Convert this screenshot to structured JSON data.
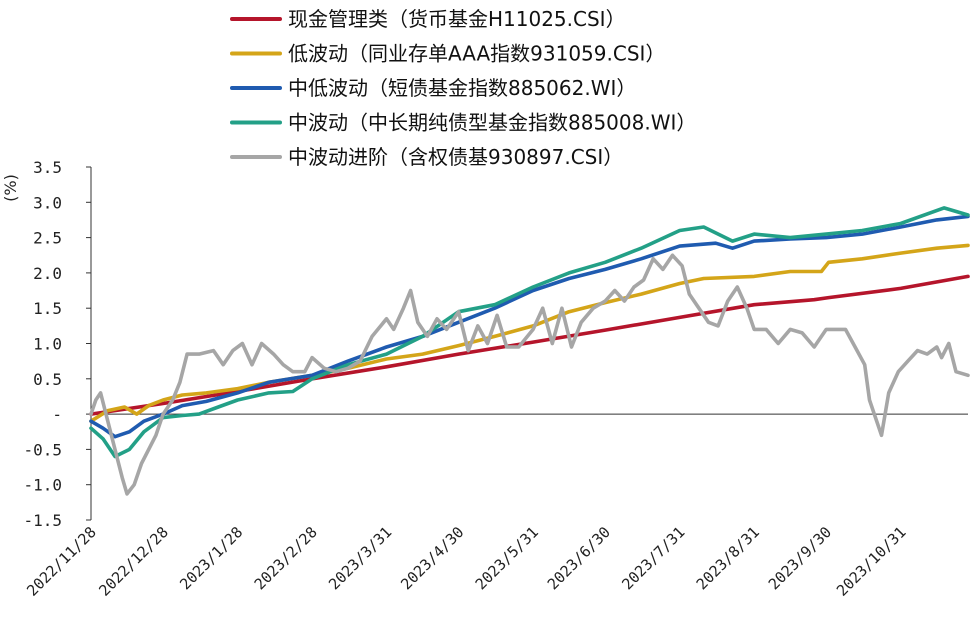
{
  "chart_data": {
    "type": "line",
    "ylabel": "(%)",
    "ylim": [
      -1.5,
      3.5
    ],
    "yticks": [
      "3.5",
      "3.0",
      "2.5",
      "2.0",
      "1.5",
      "1.0",
      "0.5",
      "-",
      "-0.5",
      "-1.0",
      "-1.5"
    ],
    "ytick_values": [
      3.5,
      3.0,
      2.5,
      2.0,
      1.5,
      1.0,
      0.5,
      0,
      -0.5,
      -1.0,
      -1.5
    ],
    "x_start": "2022-11-28",
    "x_end": "2023-11-28",
    "xticks": [
      "2022/11/28",
      "2022/12/28",
      "2023/1/28",
      "2023/2/28",
      "2023/3/31",
      "2023/4/30",
      "2023/5/31",
      "2023/6/30",
      "2023/7/31",
      "2023/8/31",
      "2023/9/30",
      "2023/10/31"
    ],
    "legend_position": "top",
    "grid": false,
    "series": [
      {
        "name": "现金管理类（货币基金H11025.CSI）",
        "color": "#B5152B",
        "points": [
          [
            "2022-11-28",
            0.0
          ],
          [
            "2022-12-28",
            0.15
          ],
          [
            "2023-01-28",
            0.32
          ],
          [
            "2023-02-28",
            0.5
          ],
          [
            "2023-03-31",
            0.67
          ],
          [
            "2023-04-30",
            0.85
          ],
          [
            "2023-05-31",
            1.02
          ],
          [
            "2023-06-30",
            1.19
          ],
          [
            "2023-07-31",
            1.37
          ],
          [
            "2023-08-31",
            1.55
          ],
          [
            "2023-09-25",
            1.62
          ],
          [
            "2023-10-01",
            1.65
          ],
          [
            "2023-10-31",
            1.78
          ],
          [
            "2023-11-28",
            1.95
          ]
        ]
      },
      {
        "name": "低波动（同业存单AAA指数931059.CSI）",
        "color": "#D4A519",
        "points": [
          [
            "2022-11-28",
            -0.1
          ],
          [
            "2022-12-05",
            0.05
          ],
          [
            "2022-12-12",
            0.1
          ],
          [
            "2022-12-17",
            0.0
          ],
          [
            "2022-12-22",
            0.12
          ],
          [
            "2022-12-28",
            0.2
          ],
          [
            "2023-01-05",
            0.27
          ],
          [
            "2023-01-15",
            0.3
          ],
          [
            "2023-01-28",
            0.36
          ],
          [
            "2023-02-10",
            0.45
          ],
          [
            "2023-02-28",
            0.55
          ],
          [
            "2023-03-15",
            0.65
          ],
          [
            "2023-03-31",
            0.78
          ],
          [
            "2023-04-15",
            0.85
          ],
          [
            "2023-04-30",
            0.97
          ],
          [
            "2023-05-15",
            1.1
          ],
          [
            "2023-05-31",
            1.25
          ],
          [
            "2023-06-15",
            1.45
          ],
          [
            "2023-06-30",
            1.58
          ],
          [
            "2023-07-15",
            1.7
          ],
          [
            "2023-07-31",
            1.85
          ],
          [
            "2023-08-10",
            1.92
          ],
          [
            "2023-08-31",
            1.95
          ],
          [
            "2023-09-15",
            2.02
          ],
          [
            "2023-09-28",
            2.02
          ],
          [
            "2023-10-01",
            2.15
          ],
          [
            "2023-10-15",
            2.2
          ],
          [
            "2023-10-31",
            2.28
          ],
          [
            "2023-11-15",
            2.35
          ],
          [
            "2023-11-28",
            2.39
          ]
        ]
      },
      {
        "name": "中低波动（短债基金指数885062.WI）",
        "color": "#1F5BB0",
        "points": [
          [
            "2022-11-28",
            -0.1
          ],
          [
            "2022-12-03",
            -0.2
          ],
          [
            "2022-12-08",
            -0.32
          ],
          [
            "2022-12-14",
            -0.25
          ],
          [
            "2022-12-20",
            -0.1
          ],
          [
            "2022-12-28",
            0.0
          ],
          [
            "2023-01-05",
            0.12
          ],
          [
            "2023-01-15",
            0.18
          ],
          [
            "2023-01-28",
            0.3
          ],
          [
            "2023-02-10",
            0.45
          ],
          [
            "2023-02-28",
            0.55
          ],
          [
            "2023-03-15",
            0.75
          ],
          [
            "2023-03-31",
            0.95
          ],
          [
            "2023-04-15",
            1.1
          ],
          [
            "2023-04-30",
            1.3
          ],
          [
            "2023-05-15",
            1.5
          ],
          [
            "2023-05-31",
            1.75
          ],
          [
            "2023-06-15",
            1.92
          ],
          [
            "2023-06-30",
            2.05
          ],
          [
            "2023-07-15",
            2.2
          ],
          [
            "2023-07-31",
            2.38
          ],
          [
            "2023-08-15",
            2.42
          ],
          [
            "2023-08-22",
            2.35
          ],
          [
            "2023-08-31",
            2.45
          ],
          [
            "2023-09-15",
            2.48
          ],
          [
            "2023-09-30",
            2.5
          ],
          [
            "2023-10-15",
            2.55
          ],
          [
            "2023-10-31",
            2.65
          ],
          [
            "2023-11-15",
            2.75
          ],
          [
            "2023-11-28",
            2.8
          ]
        ]
      },
      {
        "name": "中波动（中长期纯债型基金指数885008.WI）",
        "color": "#23A087",
        "points": [
          [
            "2022-11-28",
            -0.2
          ],
          [
            "2022-12-03",
            -0.35
          ],
          [
            "2022-12-08",
            -0.6
          ],
          [
            "2022-12-14",
            -0.5
          ],
          [
            "2022-12-20",
            -0.25
          ],
          [
            "2022-12-28",
            -0.05
          ],
          [
            "2023-01-05",
            -0.02
          ],
          [
            "2023-01-12",
            0.0
          ],
          [
            "2023-01-20",
            0.1
          ],
          [
            "2023-01-28",
            0.2
          ],
          [
            "2023-02-10",
            0.3
          ],
          [
            "2023-02-20",
            0.32
          ],
          [
            "2023-02-28",
            0.5
          ],
          [
            "2023-03-15",
            0.7
          ],
          [
            "2023-03-31",
            0.85
          ],
          [
            "2023-04-15",
            1.1
          ],
          [
            "2023-04-30",
            1.45
          ],
          [
            "2023-05-15",
            1.55
          ],
          [
            "2023-05-31",
            1.8
          ],
          [
            "2023-06-15",
            2.0
          ],
          [
            "2023-06-30",
            2.15
          ],
          [
            "2023-07-15",
            2.35
          ],
          [
            "2023-07-31",
            2.6
          ],
          [
            "2023-08-10",
            2.65
          ],
          [
            "2023-08-22",
            2.45
          ],
          [
            "2023-08-31",
            2.55
          ],
          [
            "2023-09-15",
            2.5
          ],
          [
            "2023-09-30",
            2.55
          ],
          [
            "2023-10-15",
            2.6
          ],
          [
            "2023-10-31",
            2.7
          ],
          [
            "2023-11-18",
            2.92
          ],
          [
            "2023-11-28",
            2.82
          ]
        ]
      },
      {
        "name": "中波动进阶（含权债基930897.CSI）",
        "color": "#A6A6A6",
        "points": [
          [
            "2022-11-28",
            0.0
          ],
          [
            "2022-11-30",
            0.2
          ],
          [
            "2022-12-02",
            0.3
          ],
          [
            "2022-12-05",
            -0.1
          ],
          [
            "2022-12-08",
            -0.5
          ],
          [
            "2022-12-11",
            -0.9
          ],
          [
            "2022-12-13",
            -1.13
          ],
          [
            "2022-12-16",
            -1.0
          ],
          [
            "2022-12-19",
            -0.7
          ],
          [
            "2022-12-22",
            -0.5
          ],
          [
            "2022-12-25",
            -0.3
          ],
          [
            "2022-12-28",
            0.0
          ],
          [
            "2023-01-01",
            0.2
          ],
          [
            "2023-01-04",
            0.45
          ],
          [
            "2023-01-07",
            0.85
          ],
          [
            "2023-01-12",
            0.85
          ],
          [
            "2023-01-18",
            0.9
          ],
          [
            "2023-01-22",
            0.7
          ],
          [
            "2023-01-26",
            0.9
          ],
          [
            "2023-01-30",
            1.0
          ],
          [
            "2023-02-03",
            0.7
          ],
          [
            "2023-02-07",
            1.0
          ],
          [
            "2023-02-12",
            0.85
          ],
          [
            "2023-02-16",
            0.7
          ],
          [
            "2023-02-20",
            0.6
          ],
          [
            "2023-02-25",
            0.6
          ],
          [
            "2023-02-28",
            0.8
          ],
          [
            "2023-03-05",
            0.65
          ],
          [
            "2023-03-10",
            0.6
          ],
          [
            "2023-03-15",
            0.65
          ],
          [
            "2023-03-20",
            0.75
          ],
          [
            "2023-03-25",
            1.1
          ],
          [
            "2023-03-31",
            1.35
          ],
          [
            "2023-04-03",
            1.2
          ],
          [
            "2023-04-07",
            1.5
          ],
          [
            "2023-04-10",
            1.75
          ],
          [
            "2023-04-13",
            1.3
          ],
          [
            "2023-04-17",
            1.1
          ],
          [
            "2023-04-21",
            1.35
          ],
          [
            "2023-04-25",
            1.2
          ],
          [
            "2023-04-30",
            1.45
          ],
          [
            "2023-05-04",
            0.9
          ],
          [
            "2023-05-08",
            1.25
          ],
          [
            "2023-05-12",
            1.0
          ],
          [
            "2023-05-16",
            1.4
          ],
          [
            "2023-05-20",
            0.95
          ],
          [
            "2023-05-25",
            0.95
          ],
          [
            "2023-05-31",
            1.2
          ],
          [
            "2023-06-04",
            1.5
          ],
          [
            "2023-06-08",
            1.0
          ],
          [
            "2023-06-12",
            1.5
          ],
          [
            "2023-06-16",
            0.95
          ],
          [
            "2023-06-20",
            1.3
          ],
          [
            "2023-06-25",
            1.5
          ],
          [
            "2023-06-30",
            1.6
          ],
          [
            "2023-07-04",
            1.75
          ],
          [
            "2023-07-08",
            1.6
          ],
          [
            "2023-07-12",
            1.8
          ],
          [
            "2023-07-16",
            1.9
          ],
          [
            "2023-07-20",
            2.2
          ],
          [
            "2023-07-24",
            2.05
          ],
          [
            "2023-07-28",
            2.25
          ],
          [
            "2023-08-01",
            2.1
          ],
          [
            "2023-08-04",
            1.7
          ],
          [
            "2023-08-08",
            1.5
          ],
          [
            "2023-08-12",
            1.3
          ],
          [
            "2023-08-16",
            1.25
          ],
          [
            "2023-08-20",
            1.6
          ],
          [
            "2023-08-24",
            1.8
          ],
          [
            "2023-08-28",
            1.5
          ],
          [
            "2023-08-31",
            1.2
          ],
          [
            "2023-09-05",
            1.2
          ],
          [
            "2023-09-10",
            1.0
          ],
          [
            "2023-09-15",
            1.2
          ],
          [
            "2023-09-20",
            1.15
          ],
          [
            "2023-09-25",
            0.95
          ],
          [
            "2023-09-30",
            1.2
          ],
          [
            "2023-10-08",
            1.2
          ],
          [
            "2023-10-12",
            0.95
          ],
          [
            "2023-10-16",
            0.7
          ],
          [
            "2023-10-18",
            0.2
          ],
          [
            "2023-10-21",
            -0.1
          ],
          [
            "2023-10-23",
            -0.3
          ],
          [
            "2023-10-26",
            0.3
          ],
          [
            "2023-10-30",
            0.6
          ],
          [
            "2023-11-03",
            0.75
          ],
          [
            "2023-11-07",
            0.9
          ],
          [
            "2023-11-11",
            0.85
          ],
          [
            "2023-11-15",
            0.95
          ],
          [
            "2023-11-17",
            0.8
          ],
          [
            "2023-11-20",
            1.0
          ],
          [
            "2023-11-23",
            0.6
          ],
          [
            "2023-11-28",
            0.55
          ]
        ]
      }
    ]
  }
}
